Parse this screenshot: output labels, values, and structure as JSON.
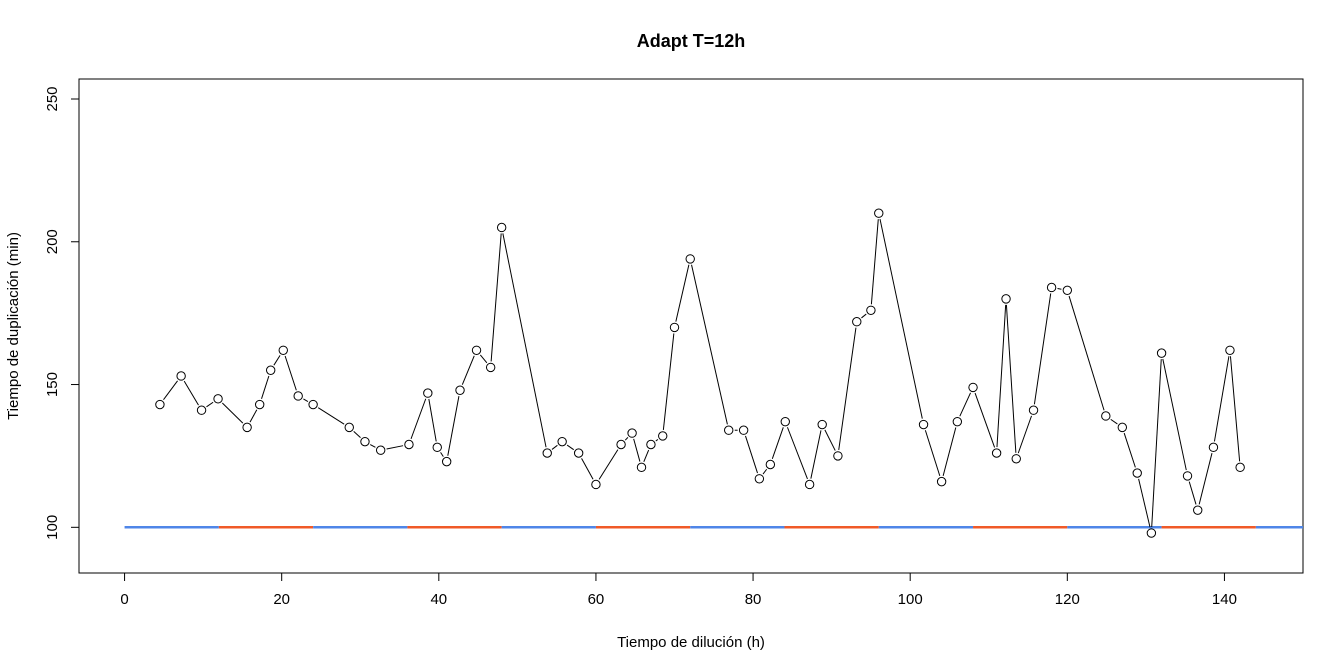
{
  "chart_data": {
    "type": "line",
    "title": "Adapt T=12h",
    "xlabel": "Tiempo de dilución (h)",
    "ylabel": "Tiempo de duplicación (min)",
    "xlim": [
      -5.8,
      150
    ],
    "ylim": [
      84,
      257
    ],
    "x_ticks": [
      0,
      20,
      40,
      60,
      80,
      100,
      120,
      140
    ],
    "y_ticks": [
      100,
      150,
      200,
      250
    ],
    "grid": false,
    "legend": "none",
    "series": [
      {
        "style": "line-with-open-circles",
        "color": "#000000",
        "x": [
          4.5,
          7.2,
          9.8,
          11.9,
          15.6,
          17.2,
          18.6,
          20.2,
          22.1,
          24.0,
          28.6,
          30.6,
          32.6,
          36.2,
          38.6,
          39.8,
          41.0,
          42.7,
          44.8,
          46.6,
          48.0,
          53.8,
          55.7,
          57.8,
          60.0,
          63.2,
          64.6,
          65.8,
          67.0,
          68.5,
          70.0,
          72.0,
          76.9,
          78.8,
          80.8,
          82.2,
          84.1,
          87.2,
          88.8,
          90.8,
          93.2,
          95.0,
          96.0,
          101.7,
          104.0,
          106.0,
          108.0,
          111.0,
          112.2,
          113.5,
          115.7,
          118.0,
          120.0,
          124.9,
          127.0,
          128.9,
          130.7,
          132.0,
          135.3,
          136.6,
          138.6,
          140.7,
          142.0
        ],
        "y": [
          143,
          153,
          141,
          145,
          135,
          143,
          155,
          162,
          146,
          143,
          135,
          130,
          127,
          129,
          147,
          128,
          123,
          148,
          162,
          156,
          205,
          126,
          130,
          126,
          115,
          129,
          133,
          121,
          129,
          132,
          170,
          194,
          134,
          134,
          117,
          122,
          137,
          115,
          136,
          125,
          172,
          176,
          210,
          136,
          116,
          137,
          149,
          126,
          180,
          124,
          141,
          184,
          183,
          139,
          135,
          119,
          98,
          161,
          118,
          106,
          128,
          162,
          121
        ]
      }
    ],
    "phase_bands": {
      "y": 100,
      "period_hours": 12,
      "colors": [
        "#4f86e8",
        "#f05a28"
      ],
      "segments": [
        {
          "x0": 0,
          "x1": 12,
          "color": "#4f86e8"
        },
        {
          "x0": 12,
          "x1": 24,
          "color": "#f05a28"
        },
        {
          "x0": 24,
          "x1": 36,
          "color": "#4f86e8"
        },
        {
          "x0": 36,
          "x1": 48,
          "color": "#f05a28"
        },
        {
          "x0": 48,
          "x1": 60,
          "color": "#4f86e8"
        },
        {
          "x0": 60,
          "x1": 72,
          "color": "#f05a28"
        },
        {
          "x0": 72,
          "x1": 84,
          "color": "#4f86e8"
        },
        {
          "x0": 84,
          "x1": 96,
          "color": "#f05a28"
        },
        {
          "x0": 96,
          "x1": 108,
          "color": "#4f86e8"
        },
        {
          "x0": 108,
          "x1": 120,
          "color": "#f05a28"
        },
        {
          "x0": 120,
          "x1": 132,
          "color": "#4f86e8"
        },
        {
          "x0": 132,
          "x1": 144,
          "color": "#f05a28"
        },
        {
          "x0": 144,
          "x1": 150,
          "color": "#4f86e8"
        }
      ]
    }
  }
}
